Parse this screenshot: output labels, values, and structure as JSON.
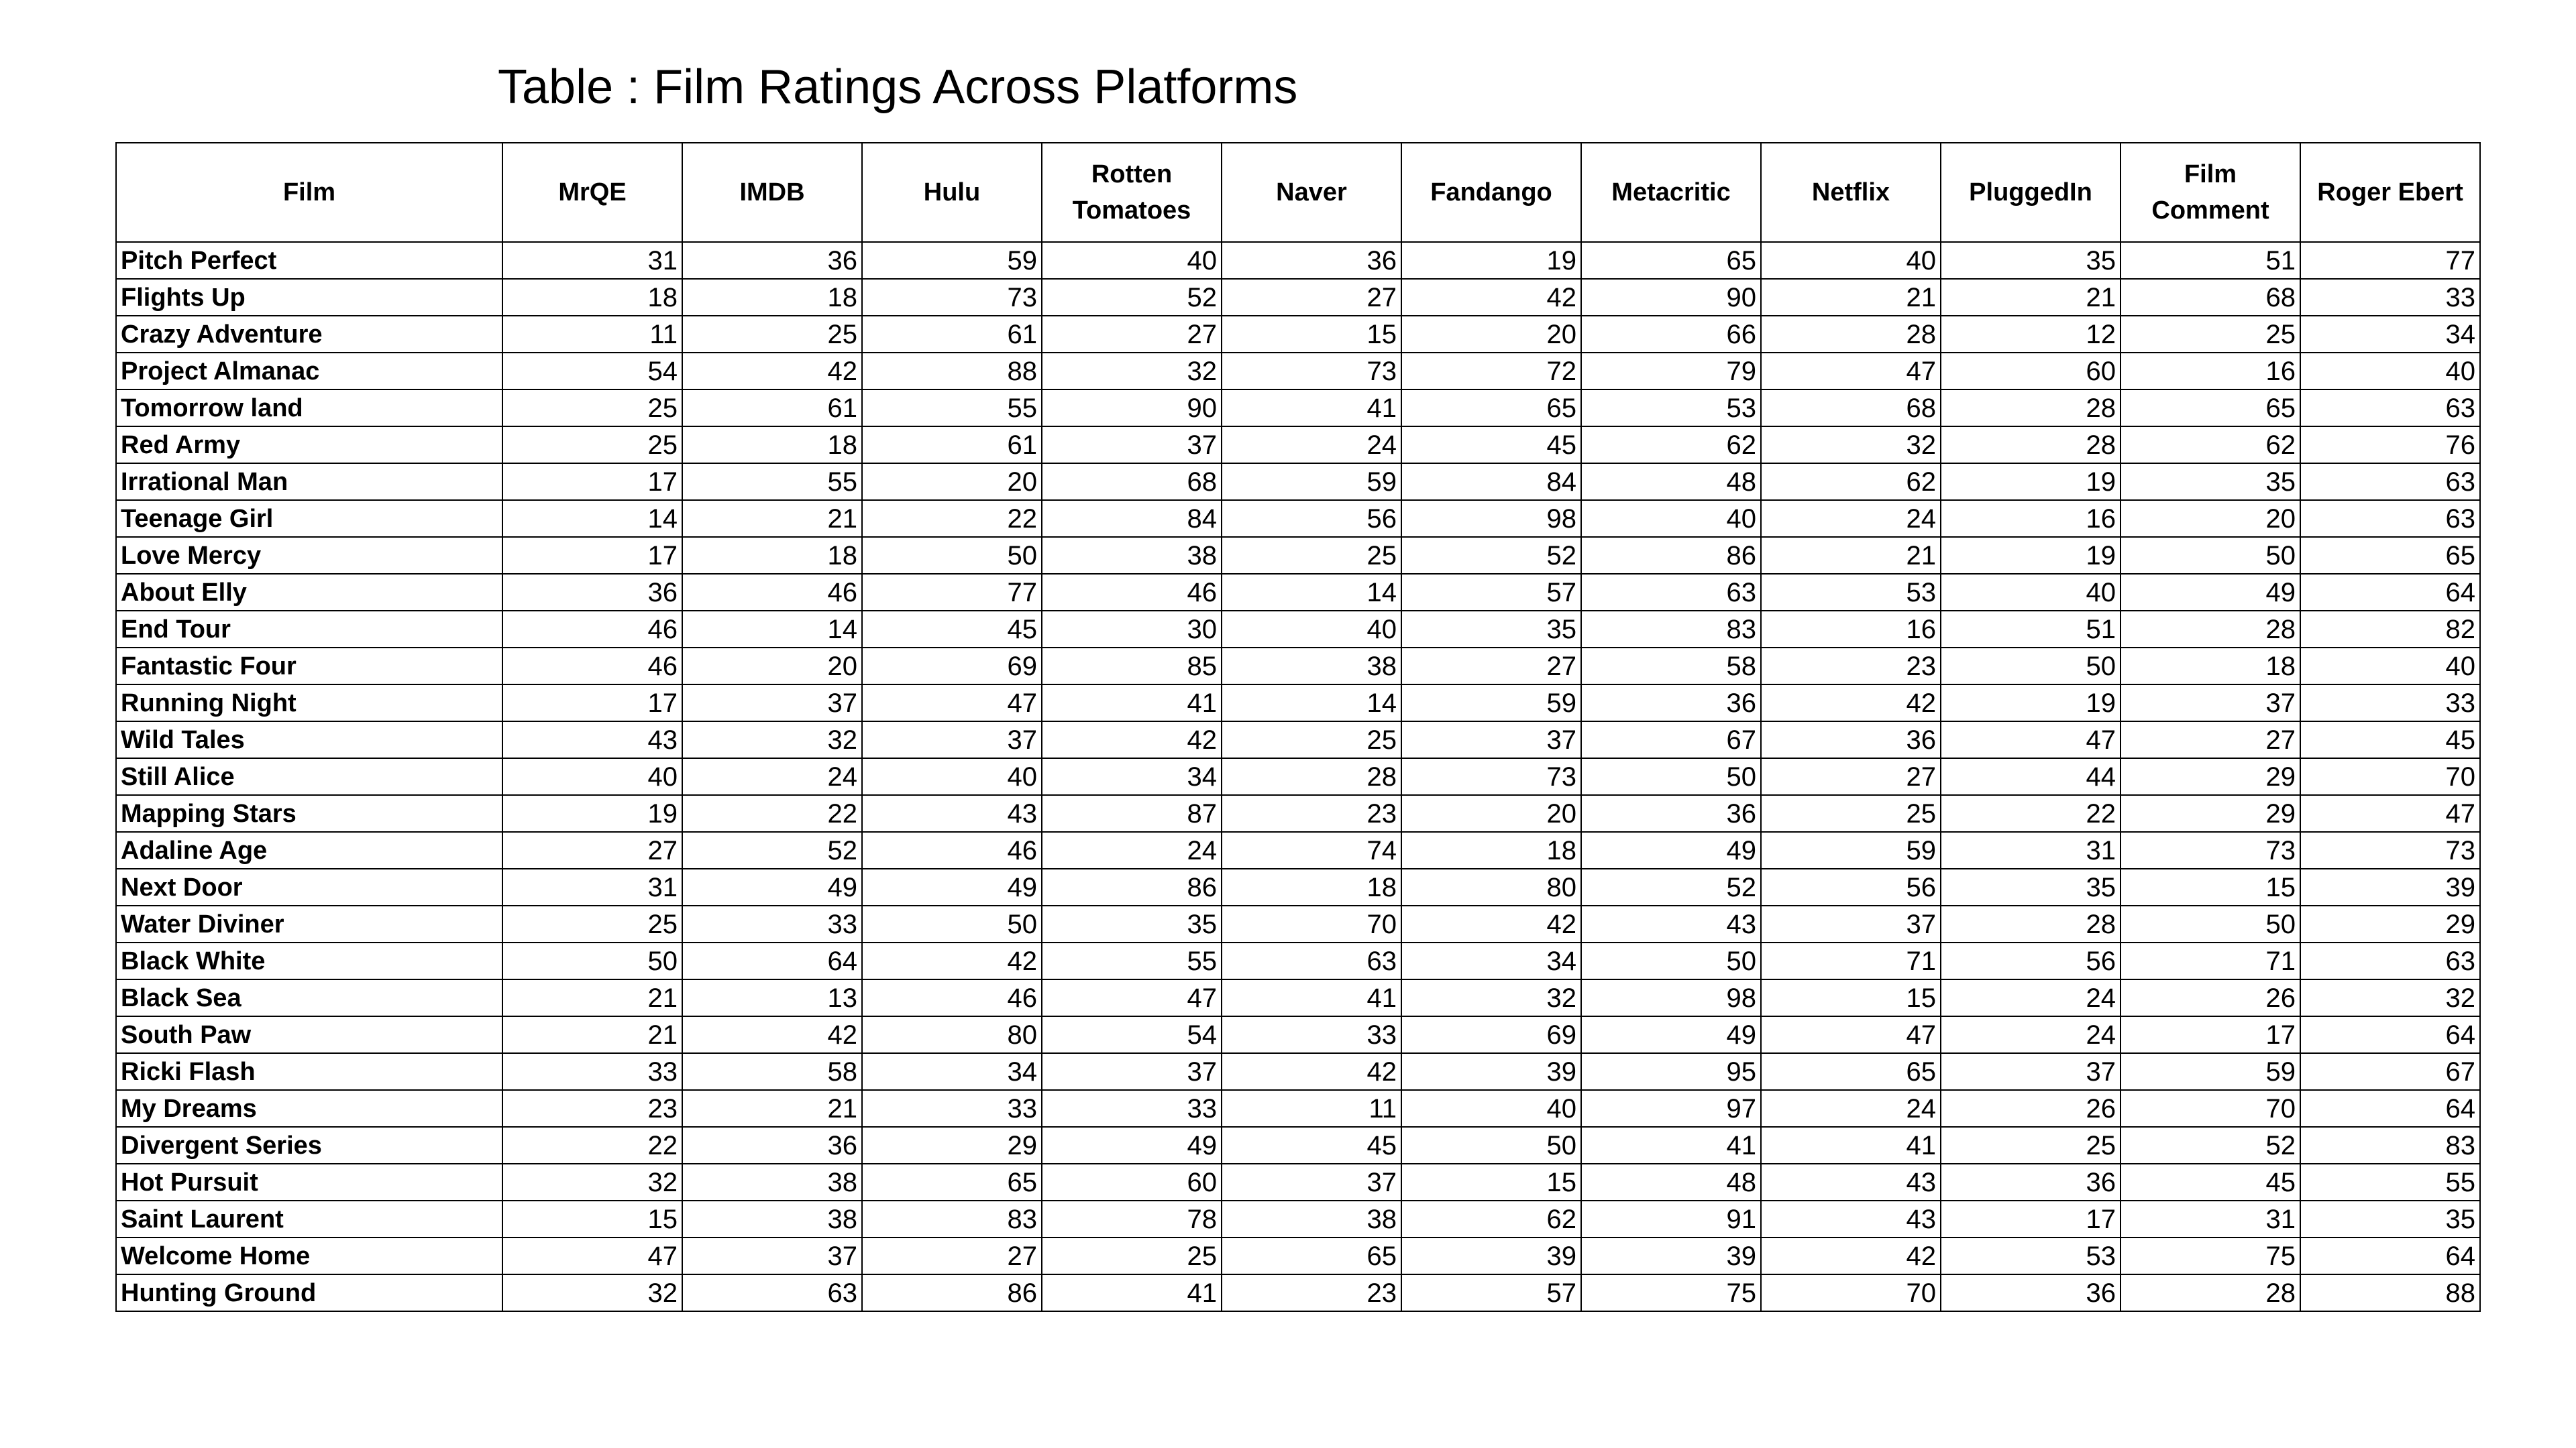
{
  "chart_data": {
    "type": "table",
    "title": "Table : Film Ratings Across Platforms",
    "columns": [
      "Film",
      "MrQE",
      "IMDB",
      "Hulu",
      "Rotten Tomatoes",
      "Naver",
      "Fandango",
      "Metacritic",
      "Netflix",
      "PluggedIn",
      "Film Comment",
      "Roger Ebert"
    ],
    "rows": [
      [
        "Pitch Perfect",
        31,
        36,
        59,
        40,
        36,
        19,
        65,
        40,
        35,
        51,
        77
      ],
      [
        "Flights Up",
        18,
        18,
        73,
        52,
        27,
        42,
        90,
        21,
        21,
        68,
        33
      ],
      [
        "Crazy Adventure",
        11,
        25,
        61,
        27,
        15,
        20,
        66,
        28,
        12,
        25,
        34
      ],
      [
        "Project Almanac",
        54,
        42,
        88,
        32,
        73,
        72,
        79,
        47,
        60,
        16,
        40
      ],
      [
        "Tomorrow land",
        25,
        61,
        55,
        90,
        41,
        65,
        53,
        68,
        28,
        65,
        63
      ],
      [
        "Red Army",
        25,
        18,
        61,
        37,
        24,
        45,
        62,
        32,
        28,
        62,
        76
      ],
      [
        "Irrational Man",
        17,
        55,
        20,
        68,
        59,
        84,
        48,
        62,
        19,
        35,
        63
      ],
      [
        "Teenage Girl",
        14,
        21,
        22,
        84,
        56,
        98,
        40,
        24,
        16,
        20,
        63
      ],
      [
        "Love Mercy",
        17,
        18,
        50,
        38,
        25,
        52,
        86,
        21,
        19,
        50,
        65
      ],
      [
        "About Elly",
        36,
        46,
        77,
        46,
        14,
        57,
        63,
        53,
        40,
        49,
        64
      ],
      [
        "End Tour",
        46,
        14,
        45,
        30,
        40,
        35,
        83,
        16,
        51,
        28,
        82
      ],
      [
        "Fantastic Four",
        46,
        20,
        69,
        85,
        38,
        27,
        58,
        23,
        50,
        18,
        40
      ],
      [
        "Running Night",
        17,
        37,
        47,
        41,
        14,
        59,
        36,
        42,
        19,
        37,
        33
      ],
      [
        "Wild Tales",
        43,
        32,
        37,
        42,
        25,
        37,
        67,
        36,
        47,
        27,
        45
      ],
      [
        "Still Alice",
        40,
        24,
        40,
        34,
        28,
        73,
        50,
        27,
        44,
        29,
        70
      ],
      [
        "Mapping Stars",
        19,
        22,
        43,
        87,
        23,
        20,
        36,
        25,
        22,
        29,
        47
      ],
      [
        "Adaline Age",
        27,
        52,
        46,
        24,
        74,
        18,
        49,
        59,
        31,
        73,
        73
      ],
      [
        "Next Door",
        31,
        49,
        49,
        86,
        18,
        80,
        52,
        56,
        35,
        15,
        39
      ],
      [
        "Water Diviner",
        25,
        33,
        50,
        35,
        70,
        42,
        43,
        37,
        28,
        50,
        29
      ],
      [
        "Black White",
        50,
        64,
        42,
        55,
        63,
        34,
        50,
        71,
        56,
        71,
        63
      ],
      [
        "Black Sea",
        21,
        13,
        46,
        47,
        41,
        32,
        98,
        15,
        24,
        26,
        32
      ],
      [
        "South Paw",
        21,
        42,
        80,
        54,
        33,
        69,
        49,
        47,
        24,
        17,
        64
      ],
      [
        "Ricki Flash",
        33,
        58,
        34,
        37,
        42,
        39,
        95,
        65,
        37,
        59,
        67
      ],
      [
        "My Dreams",
        23,
        21,
        33,
        33,
        11,
        40,
        97,
        24,
        26,
        70,
        64
      ],
      [
        "Divergent Series",
        22,
        36,
        29,
        49,
        45,
        50,
        41,
        41,
        25,
        52,
        83
      ],
      [
        "Hot Pursuit",
        32,
        38,
        65,
        60,
        37,
        15,
        48,
        43,
        36,
        45,
        55
      ],
      [
        "Saint Laurent",
        15,
        38,
        83,
        78,
        38,
        62,
        91,
        43,
        17,
        31,
        35
      ],
      [
        "Welcome Home",
        47,
        37,
        27,
        25,
        65,
        39,
        39,
        42,
        53,
        75,
        64
      ],
      [
        "Hunting Ground",
        32,
        63,
        86,
        41,
        23,
        57,
        75,
        70,
        36,
        28,
        88
      ]
    ]
  }
}
